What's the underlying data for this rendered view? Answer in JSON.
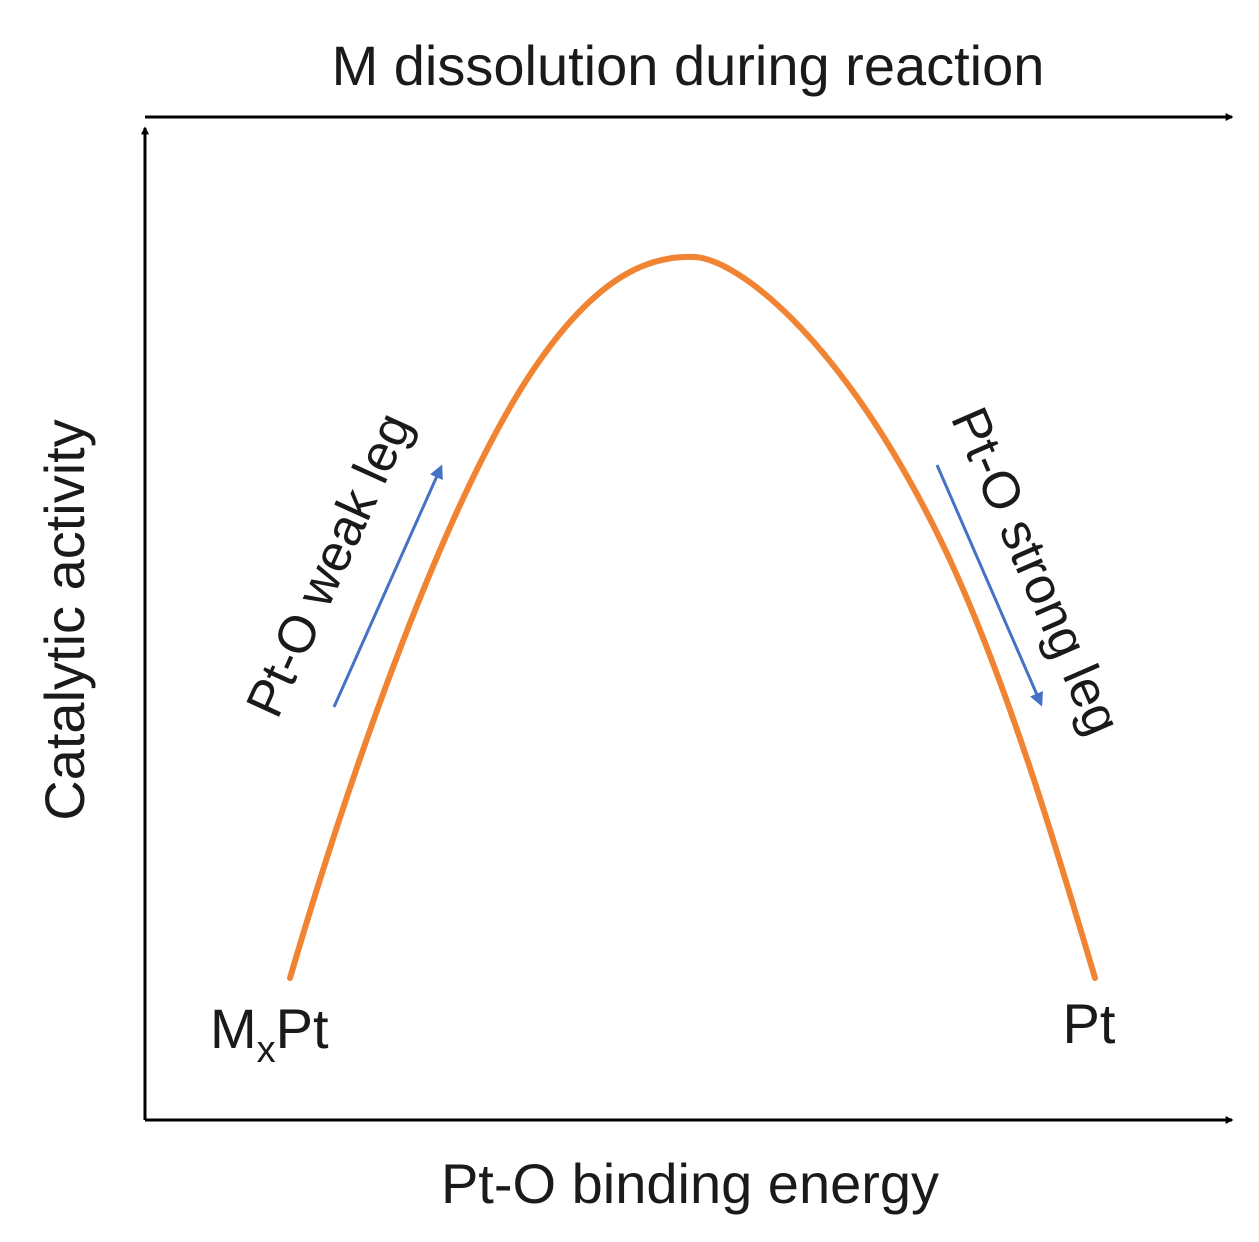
{
  "diagram": {
    "top_axis_label": "M dissolution during reaction",
    "x_axis_label": "Pt-O binding energy",
    "y_axis_label": "Catalytic activity",
    "left_endpoint": {
      "main": "M",
      "subscript": "x",
      "tail": "Pt"
    },
    "right_endpoint": "Pt",
    "weak_leg_label": "Pt-O weak leg",
    "strong_leg_label": "Pt-O strong leg",
    "colors": {
      "curve": "#f08433",
      "leg_arrows": "#4472c4",
      "axes": "#000000",
      "text": "#1a1a1a"
    }
  }
}
